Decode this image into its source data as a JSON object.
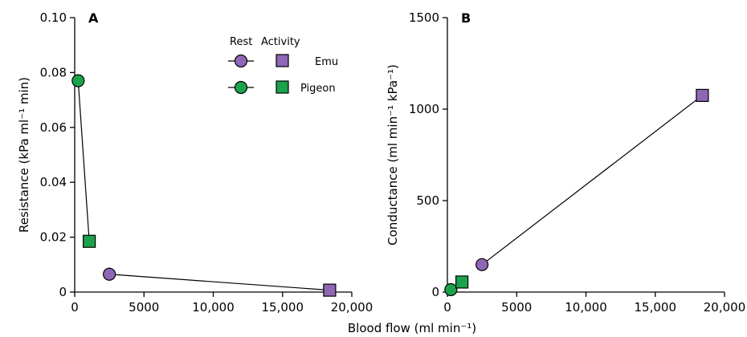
{
  "colors": {
    "emu": "#8e67b5",
    "pigeon": "#1aa34a"
  },
  "legend": {
    "rest_label": "Rest",
    "activity_label": "Activity",
    "emu_label": "Emu",
    "pigeon_label": "Pigeon"
  },
  "shared_xlabel": "Blood flow (ml min⁻¹)",
  "chart_data": [
    {
      "type": "scatter",
      "panel": "A",
      "ylabel": "Resistance (kPa ml⁻¹ min)",
      "xlim": [
        0,
        20000
      ],
      "ylim": [
        0,
        0.1
      ],
      "xticks": [
        "0",
        "5000",
        "10,000",
        "15,000",
        "20,000"
      ],
      "yticks": [
        "0",
        "0.02",
        "0.04",
        "0.06",
        "0.08",
        "0.10"
      ],
      "series": [
        {
          "name": "Emu",
          "x": [
            2500,
            18400
          ],
          "y": [
            0.0065,
            0.0007
          ]
        },
        {
          "name": "Pigeon",
          "x": [
            250,
            1050
          ],
          "y": [
            0.077,
            0.0185
          ]
        }
      ]
    },
    {
      "type": "scatter",
      "panel": "B",
      "ylabel": "Conductance (ml min⁻¹ kPa⁻¹)",
      "xlim": [
        0,
        20000
      ],
      "ylim": [
        0,
        1500
      ],
      "xticks": [
        "0",
        "5000",
        "10,000",
        "15,000",
        "20,000"
      ],
      "yticks": [
        "0",
        "500",
        "1000",
        "1500"
      ],
      "series": [
        {
          "name": "Emu",
          "x": [
            2500,
            18400
          ],
          "y": [
            150,
            1075
          ]
        },
        {
          "name": "Pigeon",
          "x": [
            250,
            1050
          ],
          "y": [
            13,
            55
          ]
        }
      ]
    }
  ]
}
